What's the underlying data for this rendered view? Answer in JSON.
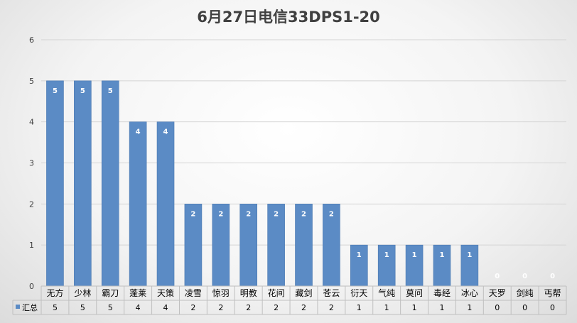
{
  "chart_data": {
    "type": "bar",
    "title": "6月27日电信33DPS1-20",
    "categories": [
      "无方",
      "少林",
      "霸刀",
      "蓬莱",
      "天策",
      "凌雪",
      "惊羽",
      "明教",
      "花间",
      "藏剑",
      "苍云",
      "衍天",
      "气纯",
      "莫问",
      "毒经",
      "冰心",
      "天罗",
      "剑纯",
      "丐帮"
    ],
    "series": [
      {
        "name": "汇总",
        "values": [
          5,
          5,
          5,
          4,
          4,
          2,
          2,
          2,
          2,
          2,
          2,
          1,
          1,
          1,
          1,
          1,
          0,
          0,
          0
        ]
      }
    ],
    "ylim": [
      0,
      6
    ],
    "yticks": [
      0,
      1,
      2,
      3,
      4,
      5,
      6
    ],
    "grid": true,
    "data_labels": true,
    "data_table": true,
    "colors": {
      "bar": "#5b8bc5",
      "bar_stroke": "#4a78b0",
      "label": "#ffffff",
      "grid": "#d4d4d4",
      "axis_text": "#404040",
      "table_line": "#bfbfbf"
    }
  }
}
